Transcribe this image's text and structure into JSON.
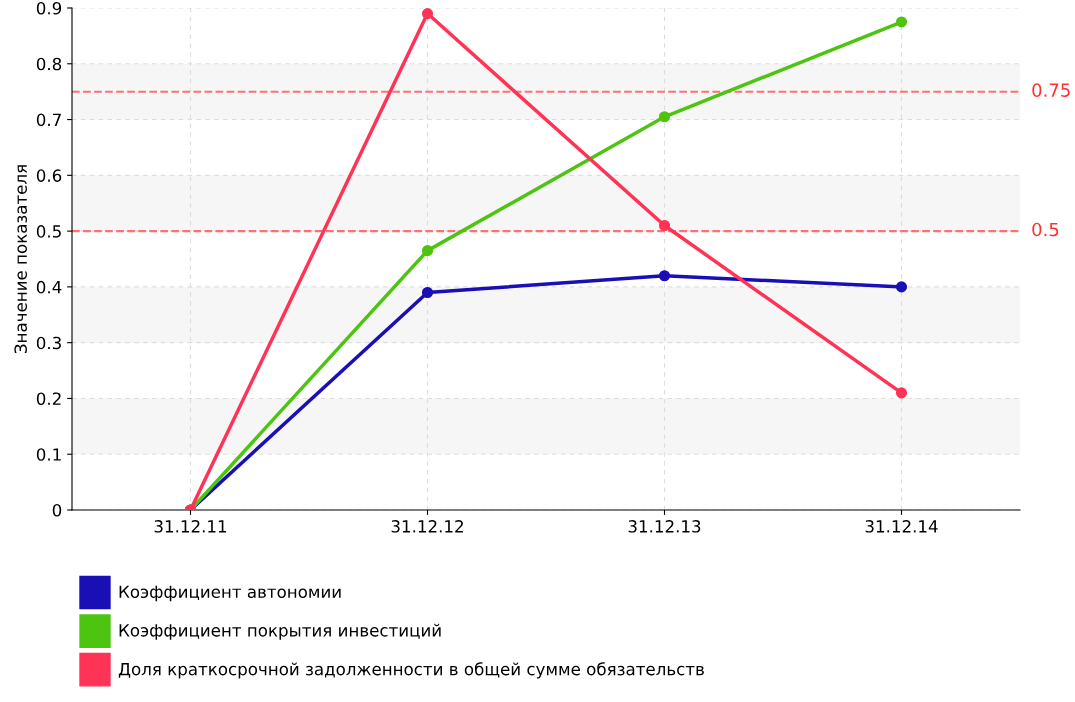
{
  "chart_data": {
    "type": "line",
    "ylabel": "Значение показателя",
    "categories": [
      "31.12.11",
      "31.12.12",
      "31.12.13",
      "31.12.14"
    ],
    "series": [
      {
        "name": "Коэффициент автономии",
        "color": "#1a0fb4",
        "values": [
          0,
          0.39,
          0.42,
          0.4
        ]
      },
      {
        "name": "Коэффициент покрытия инвестиций",
        "color": "#4cc410",
        "values": [
          0,
          0.465,
          0.705,
          0.875
        ]
      },
      {
        "name": "Доля краткосрочной задолженности в общей сумме обязательств",
        "color": "#ff3355",
        "values": [
          0,
          0.89,
          0.51,
          0.21
        ]
      }
    ],
    "ylim": [
      0,
      0.9
    ],
    "yticks": [
      0,
      0.1,
      0.2,
      0.3,
      0.4,
      0.5,
      0.6,
      0.7,
      0.8,
      0.9
    ],
    "ref_lines": [
      {
        "axis": "y",
        "value": 0.75,
        "label": "0.75",
        "color": "#ff7070",
        "line_style": "dashed"
      },
      {
        "axis": "y",
        "value": 0.5,
        "label": "0.5",
        "color": "#ff7070",
        "line_style": "dashed"
      }
    ],
    "bands": [
      {
        "axis": "y",
        "from": 0.1,
        "to": 0.2,
        "color": "#f6f6f6"
      },
      {
        "axis": "y",
        "from": 0.3,
        "to": 0.4,
        "color": "#f6f6f6"
      },
      {
        "axis": "y",
        "from": 0.5,
        "to": 0.6,
        "color": "#f6f6f6"
      },
      {
        "axis": "y",
        "from": 0.7,
        "to": 0.8,
        "color": "#f6f6f6"
      }
    ],
    "grid": true,
    "legend": "bottom",
    "marker": "circle",
    "line_style": "solid"
  }
}
